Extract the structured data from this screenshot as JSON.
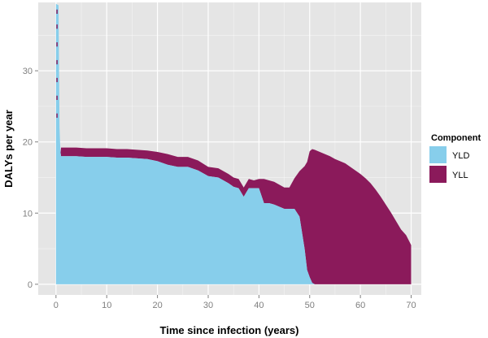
{
  "chart_data": {
    "type": "area",
    "stacked": true,
    "xlabel": "Time since infection (years)",
    "ylabel": "DALYs per year",
    "xlim": [
      -3.5,
      72
    ],
    "ylim": [
      -1.5,
      39.6
    ],
    "xticks": [
      0,
      10,
      20,
      30,
      40,
      50,
      60,
      70
    ],
    "yticks": [
      0,
      10,
      20,
      30
    ],
    "grid": true,
    "legend": {
      "title": "Component",
      "position": "right"
    },
    "colors": {
      "panel": "#e5e5e5",
      "grid": "#ffffff",
      "YLD": "#87ceeb",
      "YLL": "#8b1a5b"
    },
    "x": [
      0,
      0.5,
      0.6,
      0.7,
      0.8,
      0.9,
      1,
      2,
      4,
      6,
      8,
      10,
      12,
      14,
      16,
      18,
      20,
      22,
      24,
      26,
      28,
      30,
      32,
      34,
      35,
      36,
      37,
      38,
      39,
      40,
      41,
      42,
      43,
      44,
      45,
      46,
      47,
      48,
      49,
      49.5,
      50,
      50.5,
      51,
      52,
      53,
      54,
      55,
      56,
      57,
      58,
      59,
      60,
      61,
      62,
      63,
      64,
      65,
      66,
      67,
      68,
      69,
      69.5,
      70
    ],
    "series": [
      {
        "name": "YLD",
        "values": [
          39.4,
          39.2,
          30,
          22,
          20,
          18.5,
          18,
          18,
          18,
          17.9,
          17.9,
          17.9,
          17.8,
          17.8,
          17.7,
          17.6,
          17.3,
          16.8,
          16.5,
          16.5,
          16,
          15.2,
          15,
          14.2,
          13.7,
          13.5,
          12.3,
          13.5,
          13.5,
          13.5,
          11.4,
          11.4,
          11.2,
          10.9,
          10.6,
          10.6,
          10.6,
          9.5,
          5,
          2,
          1,
          0.2,
          0,
          0,
          0,
          0,
          0,
          0,
          0,
          0,
          0,
          0,
          0,
          0,
          0,
          0,
          0,
          0,
          0,
          0,
          0,
          0,
          0
        ]
      },
      {
        "name": "YLL",
        "values": [
          0,
          0,
          0,
          0,
          0,
          0,
          1.2,
          1.2,
          1.2,
          1.2,
          1.2,
          1.2,
          1.2,
          1.2,
          1.2,
          1.2,
          1.3,
          1.5,
          1.4,
          1.4,
          1.4,
          1.3,
          1.3,
          1.3,
          1.3,
          1.3,
          1.3,
          1.3,
          1.1,
          1.3,
          3.4,
          3.2,
          3.2,
          3.1,
          3.0,
          3.0,
          4.3,
          6.4,
          11.6,
          15.2,
          17.7,
          18.8,
          18.9,
          18.6,
          18.3,
          18.0,
          17.6,
          17.3,
          17.0,
          16.5,
          16.0,
          15.5,
          14.9,
          14.2,
          13.3,
          12.3,
          11.2,
          10.1,
          8.9,
          7.7,
          6.9,
          6.2,
          5.5
        ]
      }
    ]
  }
}
